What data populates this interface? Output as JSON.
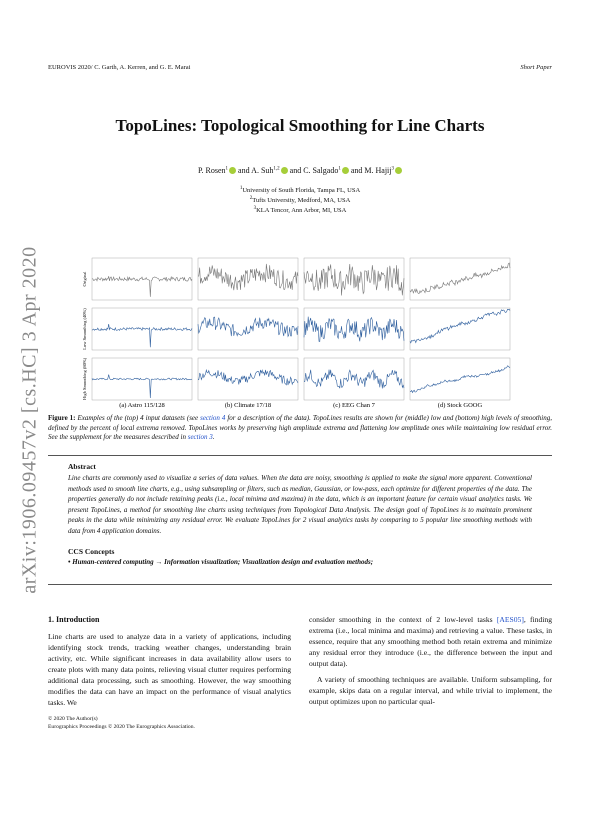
{
  "header": {
    "left": "EUROVIS 2020/ C. Garth, A. Kerren, and G. E. Marai",
    "right": "Short Paper"
  },
  "title": "TopoLines: Topological Smoothing for Line Charts",
  "authors": [
    {
      "name": "P. Rosen",
      "aff": "1"
    },
    {
      "name": "A. Suh",
      "aff": "1,2"
    },
    {
      "name": "C. Salgado",
      "aff": "1"
    },
    {
      "name": "M. Hajij",
      "aff": "3"
    }
  ],
  "author_separator": "and",
  "affiliations": [
    {
      "num": "1",
      "text": "University of South Florida, Tampa FL, USA"
    },
    {
      "num": "2",
      "text": "Tufts University, Medford, MA, USA"
    },
    {
      "num": "3",
      "text": "KLA Tencor, Ann Arbor, MI, USA"
    }
  ],
  "arxiv": "arXiv:1906.09457v2  [cs.HC]  3 Apr 2020",
  "figure": {
    "row_labels": [
      "Original",
      "Low Smoothing (40%)",
      "High Smoothing (80%)"
    ],
    "panels": [
      "(a) Astro 115/128",
      "(b) Climate 17/18",
      "(c) EEG Chan 7",
      "(d) Stock GOOG"
    ],
    "caption_label": "Figure 1:",
    "caption_parts": [
      "Examples of the (top) 4 input datasets (see ",
      "section 4",
      " for a description of the data). TopoLines results are shown for (middle) low and (bottom) high levels of smoothing, defined by the percent of local extrema removed. TopoLines works by preserving high amplitude extrema and flattening low amplitude ones while maintaining low residual error. See the supplement for the measures described in ",
      "section 3",
      "."
    ]
  },
  "abstract": {
    "heading": "Abstract",
    "text": "Line charts are commonly used to visualize a series of data values. When the data are noisy, smoothing is applied to make the signal more apparent. Conventional methods used to smooth line charts, e.g., using subsampling or filters, such as median, Gaussian, or low-pass, each optimize for different properties of the data. The properties generally do not include retaining peaks (i.e., local minima and maxima) in the data, which is an important feature for certain visual analytics tasks. We present TopoLines, a method for smoothing line charts using techniques from Topological Data Analysis. The design goal of TopoLines is to maintain prominent peaks in the data while minimizing any residual error. We evaluate TopoLines for 2 visual analytics tasks by comparing to 5 popular line smoothing methods with data from 4 application domains."
  },
  "ccs": {
    "heading": "CCS Concepts",
    "text": "• Human-centered computing → Information visualization; Visualization design and evaluation methods;"
  },
  "section": {
    "heading": "1. Introduction",
    "left": [
      "Line charts are used to analyze data in a variety of applications, including identifying stock trends, tracking weather changes, understanding brain activity, etc. While significant increases in data availability allow users to create plots with many data points, relieving visual clutter requires performing additional data processing, such as smoothing. However, the way smoothing modifies the data can have an impact on the performance of visual analytics tasks. We"
    ],
    "right_parts": [
      "consider smoothing in the context of 2 low-level tasks ",
      "[AES05]",
      ", finding extrema (i.e., local minima and maxima) and retrieving a value. These tasks, in essence, require that any smoothing method both retain extrema and minimize any residual error they introduce (i.e., the difference between the input and output data)."
    ],
    "right_p2": "A variety of smoothing techniques are available. Uniform subsampling, for example, skips data on a regular interval, and while trivial to implement, the output optimizes upon no particular qual-"
  },
  "footer": [
    "© 2020 The Author(s)",
    "Eurographics Proceedings © 2020 The Eurographics Association."
  ]
}
